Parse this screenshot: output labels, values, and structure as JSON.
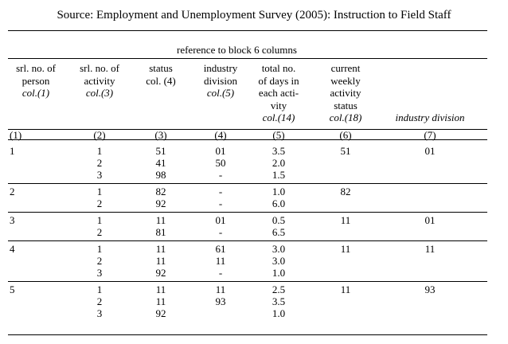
{
  "source_title": "Source: Employment and Unemployment Survey (2005): Instruction to Field Staff",
  "reference_title": "reference to block 6 columns",
  "headers": [
    {
      "lines": [
        "srl. no. of",
        "person"
      ],
      "italic": "col.(1)"
    },
    {
      "lines": [
        "srl. no. of",
        "activity"
      ],
      "italic": "col.(3)"
    },
    {
      "lines": [
        "status",
        "col. (4)"
      ],
      "italic": ""
    },
    {
      "lines": [
        "industry",
        "division"
      ],
      "italic": "col.(5)"
    },
    {
      "lines": [
        "total no.",
        "of days in",
        "each acti-",
        "vity"
      ],
      "italic": "col.(14)"
    },
    {
      "lines": [
        "current",
        "weekly",
        "activity",
        "status"
      ],
      "italic": "col.(18)"
    },
    {
      "lines": [],
      "italic": "industry division"
    }
  ],
  "column_numbers": [
    "(1)",
    "(2)",
    "(3)",
    "(4)",
    "(5)",
    "(6)",
    "(7)"
  ],
  "persons": [
    {
      "person": "1",
      "current_status": "51",
      "industry": "01",
      "activities": [
        {
          "activity": "1",
          "status": "51",
          "division": "01",
          "days": "3.5"
        },
        {
          "activity": "2",
          "status": "41",
          "division": "50",
          "days": "2.0"
        },
        {
          "activity": "3",
          "status": "98",
          "division": "-",
          "days": "1.5"
        }
      ]
    },
    {
      "person": "2",
      "current_status": "82",
      "industry": "",
      "activities": [
        {
          "activity": "1",
          "status": "82",
          "division": "-",
          "days": "1.0"
        },
        {
          "activity": "2",
          "status": "92",
          "division": "-",
          "days": "6.0"
        }
      ]
    },
    {
      "person": "3",
      "current_status": "11",
      "industry": "01",
      "activities": [
        {
          "activity": "1",
          "status": "11",
          "division": "01",
          "days": "0.5"
        },
        {
          "activity": "2",
          "status": "81",
          "division": "-",
          "days": "6.5"
        }
      ]
    },
    {
      "person": "4",
      "current_status": "11",
      "industry": "11",
      "activities": [
        {
          "activity": "1",
          "status": "11",
          "division": "61",
          "days": "3.0"
        },
        {
          "activity": "2",
          "status": "11",
          "division": "11",
          "days": "3.0"
        },
        {
          "activity": "3",
          "status": "92",
          "division": "-",
          "days": "1.0"
        }
      ]
    },
    {
      "person": "5",
      "current_status": "11",
      "industry": "93",
      "activities": [
        {
          "activity": "1",
          "status": "11",
          "division": "11",
          "days": "2.5"
        },
        {
          "activity": "2",
          "status": "11",
          "division": "93",
          "days": "3.5"
        },
        {
          "activity": "3",
          "status": "92",
          "division": "",
          "days": "1.0"
        }
      ]
    }
  ]
}
